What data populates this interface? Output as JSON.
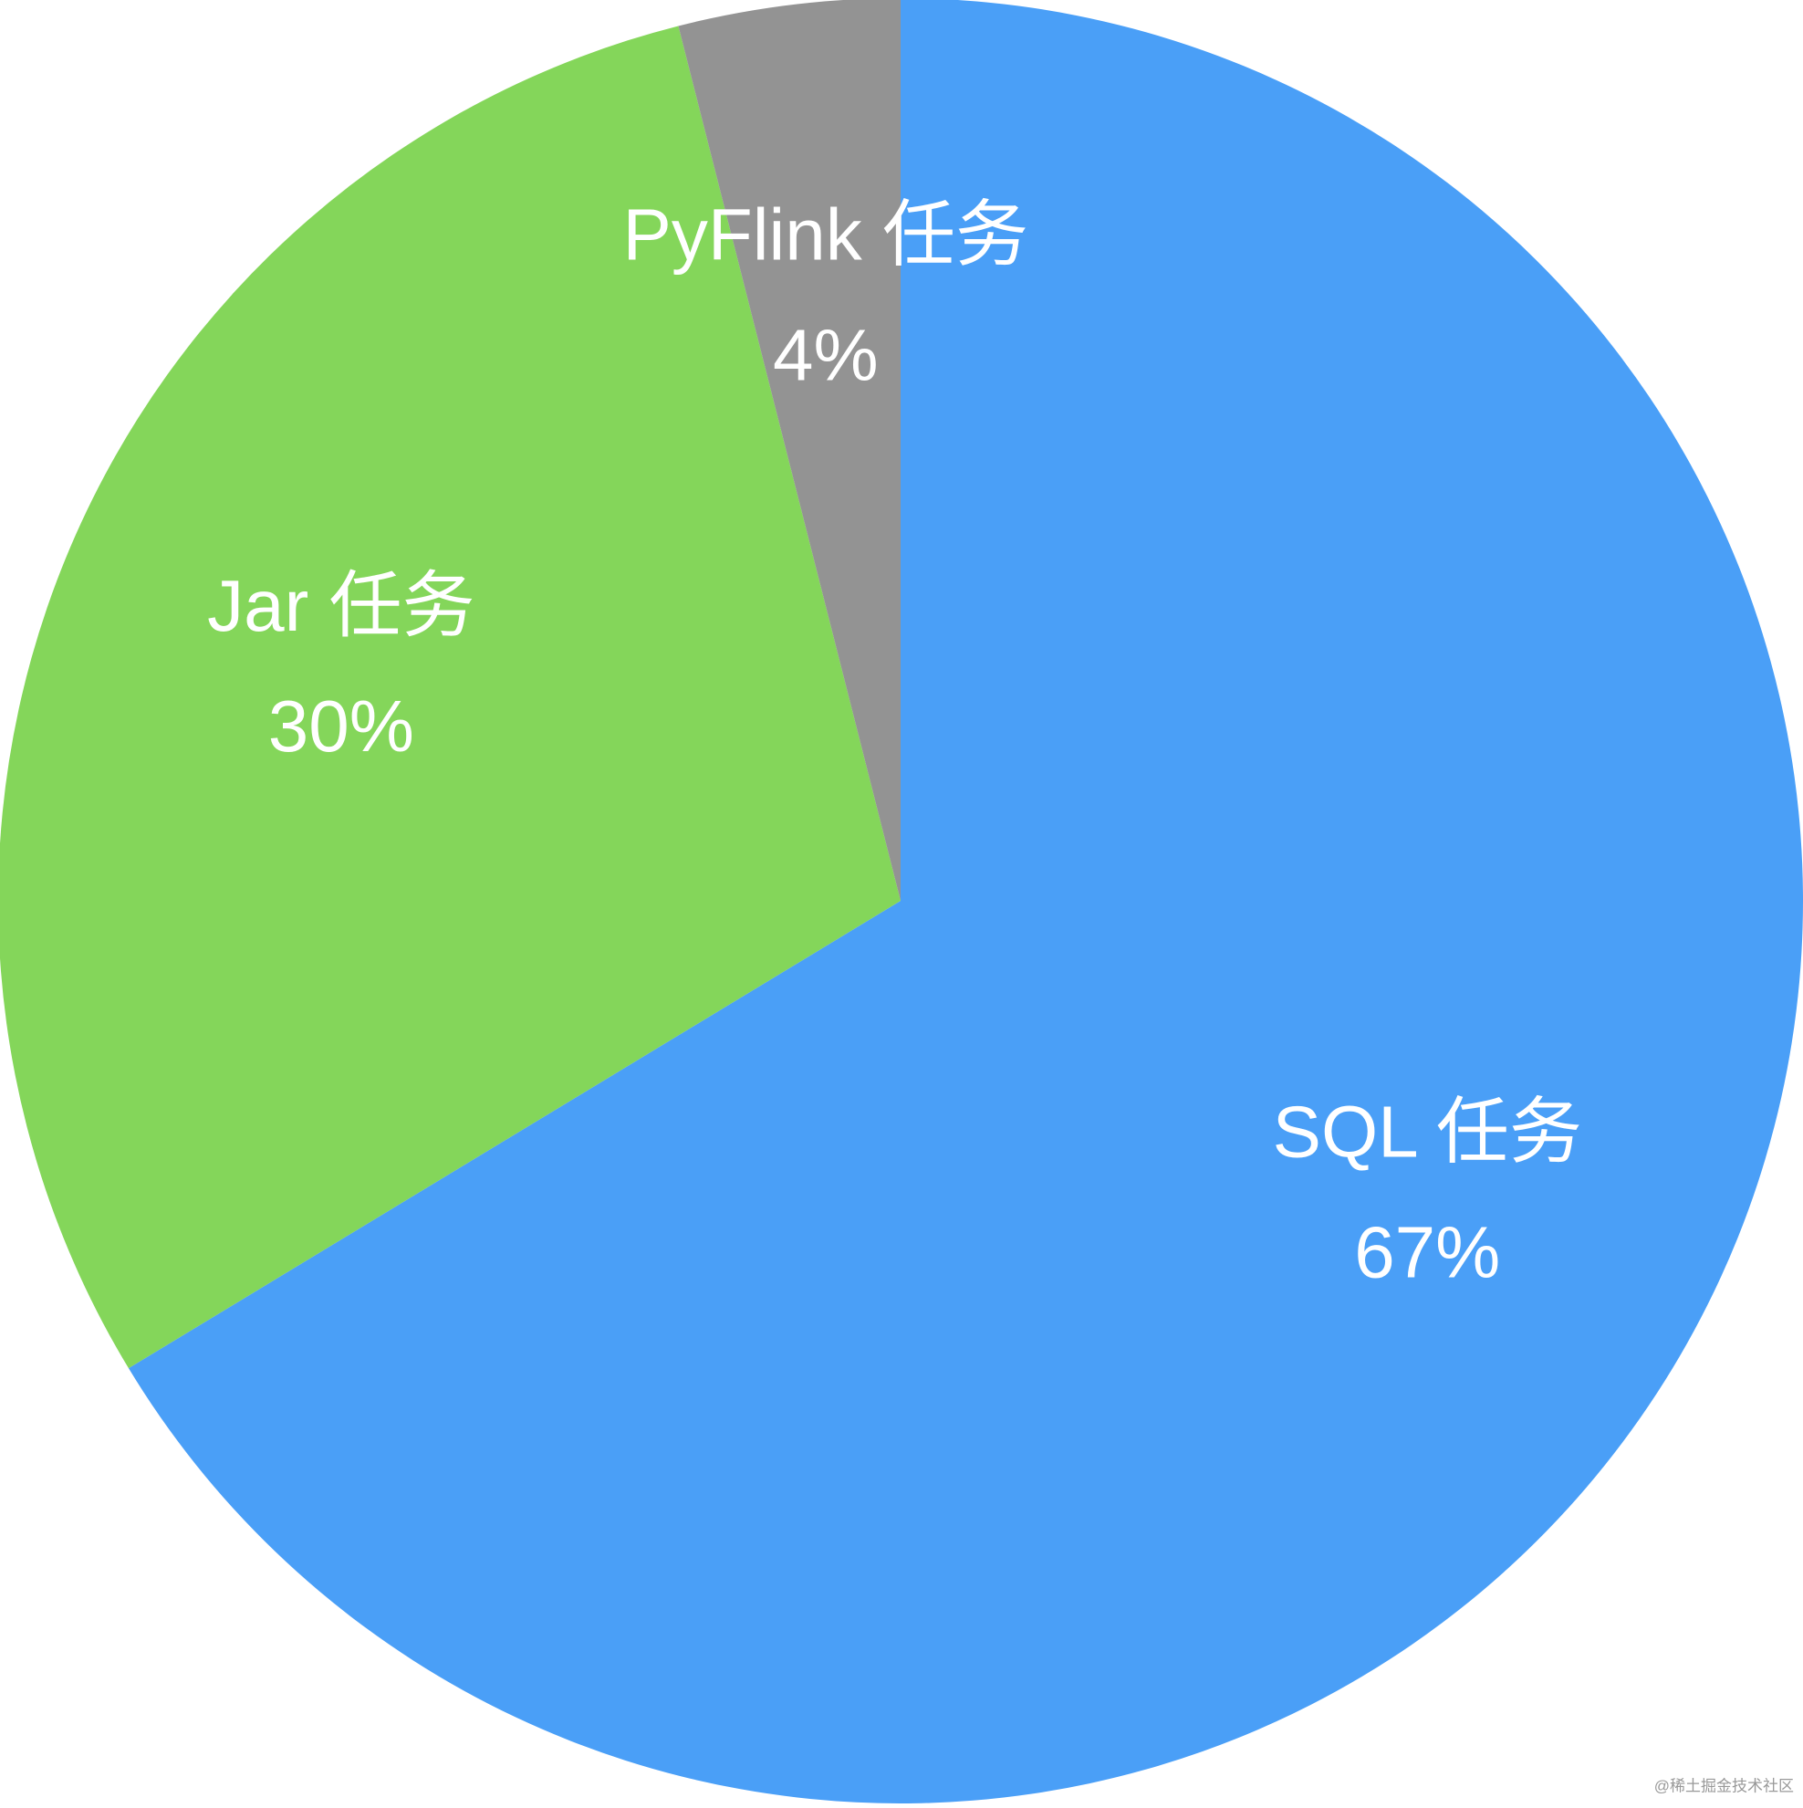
{
  "chart_data": {
    "type": "pie",
    "categories": [
      "SQL 任务",
      "Jar 任务",
      "PyFlink 任务"
    ],
    "values": [
      67,
      30,
      4
    ],
    "value_labels": [
      "67%",
      "30%",
      "4%"
    ],
    "colors": [
      "#4a9ff7",
      "#84d65a",
      "#939393"
    ],
    "start_angle": 0,
    "direction": "clockwise",
    "watermark": "@稀土掘金技术社区"
  }
}
